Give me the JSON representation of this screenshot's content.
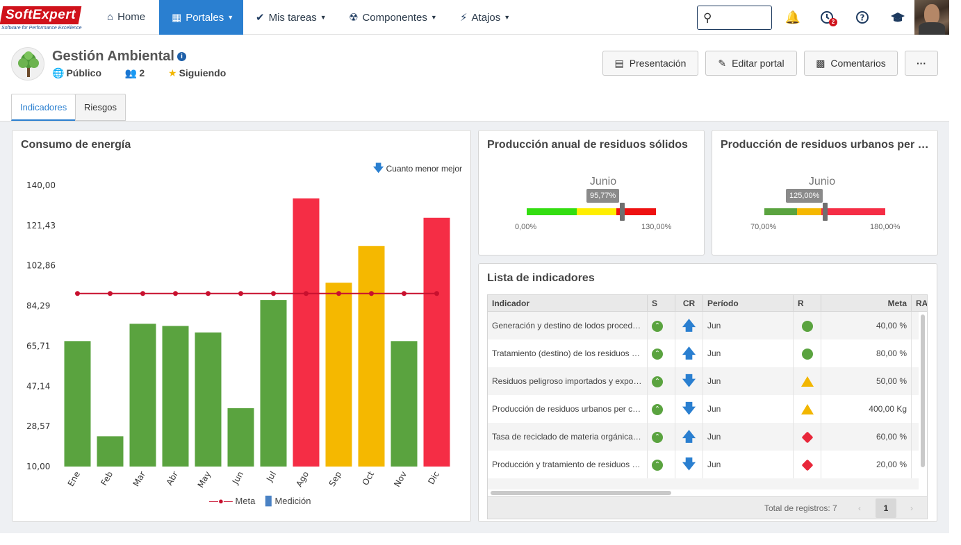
{
  "logo": {
    "word": "SoftExpert",
    "tagline": "Software for Performance Excellence"
  },
  "nav": {
    "items": [
      {
        "label": "Home",
        "icon": "home-icon"
      },
      {
        "label": "Portales",
        "icon": "grid-icon",
        "active": true
      },
      {
        "label": "Mis tareas",
        "icon": "check-icon"
      },
      {
        "label": "Componentes",
        "icon": "trophy-icon"
      },
      {
        "label": "Atajos",
        "icon": "bolt-icon"
      }
    ],
    "search_placeholder": "",
    "notifications_badge": "2"
  },
  "portal": {
    "title": "Gestión Ambiental",
    "visibility": "Público",
    "members": "2",
    "following": "Siguiendo",
    "buttons": {
      "presentation": "Presentación",
      "edit": "Editar portal",
      "comments": "Comentarios",
      "more": "···"
    },
    "tabs": [
      "Indicadores",
      "Riesgos"
    ]
  },
  "energy_panel": {
    "title": "Consumo de energía",
    "direction_note": "Cuanto menor mejor"
  },
  "chart_data": {
    "type": "bar",
    "categories": [
      "Ene",
      "Feb",
      "Mar",
      "Abr",
      "May",
      "Jun",
      "Jul",
      "Ago",
      "Sep",
      "Oct",
      "Nov",
      "Dic"
    ],
    "series": [
      {
        "name": "Medición",
        "values": [
          68,
          24,
          76,
          75,
          72,
          37,
          87,
          134,
          95,
          112,
          68,
          125
        ]
      },
      {
        "name": "Meta",
        "type": "line",
        "values": [
          90,
          90,
          90,
          90,
          90,
          90,
          90,
          90,
          90,
          90,
          90,
          90
        ]
      }
    ],
    "bar_colors": [
      "#5aa33f",
      "#5aa33f",
      "#5aa33f",
      "#5aa33f",
      "#5aa33f",
      "#5aa33f",
      "#5aa33f",
      "#f52d45",
      "#f5b800",
      "#f5b800",
      "#5aa33f",
      "#f52d45"
    ],
    "yticks": [
      "140,00",
      "121,43",
      "102,86",
      "84,29",
      "65,71",
      "47,14",
      "28,57",
      "10,00"
    ],
    "ylim": [
      10,
      140
    ],
    "meta_color": "#c8102e"
  },
  "gauge1": {
    "title": "Producción anual de residuos sólidos",
    "month": "Junio",
    "value_label": "95,77%",
    "value": 95.77,
    "min_label": "0,00%",
    "max_label": "130,00%",
    "min": 0,
    "max": 130,
    "bands": [
      {
        "to": 50,
        "color": "#33dd11"
      },
      {
        "to": 90,
        "color": "#ffee00"
      },
      {
        "to": 130,
        "color": "#ee1111"
      }
    ]
  },
  "gauge2": {
    "title": "Producción de residuos urbanos per …",
    "month": "Junio",
    "value_label": "125,00%",
    "value": 125,
    "min_label": "70,00%",
    "max_label": "180,00%",
    "min": 70,
    "max": 180,
    "bands": [
      {
        "to": 100,
        "color": "#5aa33f"
      },
      {
        "to": 122,
        "color": "#f5b800"
      },
      {
        "to": 180,
        "color": "#f52d45"
      }
    ]
  },
  "list": {
    "title": "Lista de indicadores",
    "columns": [
      "Indicador",
      "S",
      "CR",
      "Período",
      "R",
      "Meta",
      "RA"
    ],
    "rows": [
      {
        "indicator": "Generación y destino de lodos proced…",
        "status": "ok",
        "trend": "up",
        "period": "Jun",
        "result": "green-circle",
        "meta": "40,00 %"
      },
      {
        "indicator": "Tratamiento (destino) de los residuos s…",
        "status": "ok",
        "trend": "up",
        "period": "Jun",
        "result": "green-circle",
        "meta": "80,00 %"
      },
      {
        "indicator": "Residuos peligroso importados y expo…",
        "status": "ok",
        "trend": "down",
        "period": "Jun",
        "result": "yellow-triangle",
        "meta": "50,00 %"
      },
      {
        "indicator": "Producción de residuos urbanos per c…",
        "status": "ok",
        "trend": "down",
        "period": "Jun",
        "result": "yellow-triangle",
        "meta": "400,00 Kg"
      },
      {
        "indicator": "Tasa de reciclado de materia orgánica …",
        "status": "ok",
        "trend": "up",
        "period": "Jun",
        "result": "red-diamond",
        "meta": "60,00 %"
      },
      {
        "indicator": "Producción y tratamiento de residuos …",
        "status": "ok",
        "trend": "down",
        "period": "Jun",
        "result": "red-diamond",
        "meta": "20,00 %"
      }
    ],
    "total_label": "Total de registros: 7",
    "current_page": "1"
  },
  "legend": {
    "meta": "Meta",
    "medicion": "Medición"
  }
}
